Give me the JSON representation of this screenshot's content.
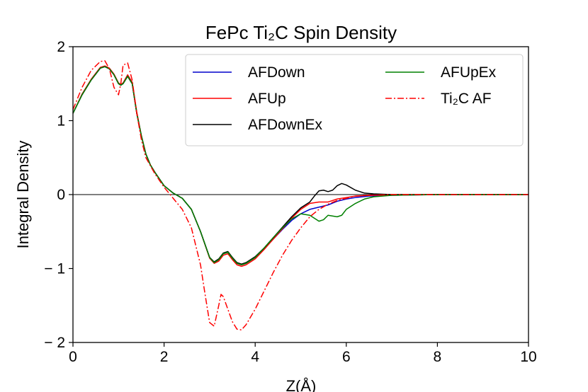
{
  "chart_data": {
    "type": "line",
    "title": "FePc Ti₂C Spin Density",
    "xlabel": "Z(Å)",
    "ylabel": "Integral Density",
    "xlim": [
      0,
      10
    ],
    "ylim": [
      -2,
      2
    ],
    "xticks": [
      "0",
      "2",
      "4",
      "6",
      "8",
      "10"
    ],
    "yticks": [
      "2",
      "1",
      "0",
      "− 1",
      "− 2"
    ],
    "ytick_values": [
      2,
      1,
      0,
      -1,
      -2
    ],
    "xtick_values": [
      0,
      2,
      4,
      6,
      8,
      10
    ],
    "zero_line": true,
    "legend_position": "top-right",
    "legend_columns": 2,
    "series": [
      {
        "name": "AFDown",
        "color": "#0000cc",
        "style": "solid",
        "x": [
          0,
          0.2,
          0.4,
          0.6,
          0.7,
          0.8,
          0.9,
          1.0,
          1.05,
          1.1,
          1.2,
          1.3,
          1.4,
          1.5,
          1.6,
          1.7,
          1.8,
          2.0,
          2.2,
          2.4,
          2.6,
          2.8,
          3.0,
          3.1,
          3.2,
          3.3,
          3.4,
          3.5,
          3.6,
          3.7,
          3.8,
          4.0,
          4.2,
          4.4,
          4.6,
          4.8,
          5.0,
          5.2,
          5.4,
          5.6,
          5.8,
          6.0,
          6.2,
          6.5,
          7.0,
          8.0,
          10.0
        ],
        "y": [
          1.1,
          1.35,
          1.55,
          1.71,
          1.73,
          1.7,
          1.62,
          1.5,
          1.48,
          1.5,
          1.6,
          1.5,
          1.1,
          0.8,
          0.55,
          0.4,
          0.3,
          0.12,
          0.02,
          -0.05,
          -0.2,
          -0.5,
          -0.85,
          -0.92,
          -0.88,
          -0.8,
          -0.78,
          -0.86,
          -0.93,
          -0.95,
          -0.93,
          -0.85,
          -0.73,
          -0.6,
          -0.47,
          -0.35,
          -0.26,
          -0.2,
          -0.17,
          -0.14,
          -0.09,
          -0.06,
          -0.04,
          -0.02,
          -0.01,
          0,
          0
        ]
      },
      {
        "name": "AFUp",
        "color": "#ff0000",
        "style": "solid",
        "x": [
          0,
          0.2,
          0.4,
          0.6,
          0.7,
          0.8,
          0.9,
          1.0,
          1.05,
          1.1,
          1.2,
          1.3,
          1.4,
          1.5,
          1.6,
          1.7,
          1.8,
          2.0,
          2.2,
          2.4,
          2.6,
          2.8,
          3.0,
          3.1,
          3.2,
          3.3,
          3.4,
          3.5,
          3.6,
          3.7,
          3.8,
          4.0,
          4.2,
          4.4,
          4.6,
          4.8,
          5.0,
          5.2,
          5.4,
          5.6,
          5.8,
          6.0,
          6.2,
          6.5,
          7.0,
          8.0,
          10.0
        ],
        "y": [
          1.1,
          1.36,
          1.56,
          1.72,
          1.74,
          1.71,
          1.63,
          1.51,
          1.49,
          1.51,
          1.62,
          1.52,
          1.12,
          0.8,
          0.55,
          0.4,
          0.3,
          0.12,
          0.02,
          -0.05,
          -0.2,
          -0.5,
          -0.86,
          -0.93,
          -0.9,
          -0.82,
          -0.8,
          -0.88,
          -0.95,
          -0.97,
          -0.95,
          -0.87,
          -0.74,
          -0.6,
          -0.46,
          -0.32,
          -0.2,
          -0.12,
          -0.1,
          -0.1,
          -0.06,
          -0.04,
          -0.02,
          -0.01,
          0,
          0,
          0
        ]
      },
      {
        "name": "AFDownEx",
        "color": "#000000",
        "style": "solid",
        "x": [
          0,
          0.2,
          0.4,
          0.6,
          0.7,
          0.8,
          0.9,
          1.0,
          1.05,
          1.1,
          1.2,
          1.3,
          1.4,
          1.5,
          1.6,
          1.7,
          1.8,
          2.0,
          2.2,
          2.4,
          2.6,
          2.8,
          3.0,
          3.1,
          3.2,
          3.3,
          3.4,
          3.5,
          3.6,
          3.7,
          3.8,
          4.0,
          4.2,
          4.4,
          4.6,
          4.8,
          5.0,
          5.2,
          5.3,
          5.4,
          5.5,
          5.6,
          5.7,
          5.8,
          5.9,
          6.0,
          6.2,
          6.4,
          6.6,
          7.0,
          8.0,
          10.0
        ],
        "y": [
          1.1,
          1.35,
          1.55,
          1.71,
          1.73,
          1.7,
          1.62,
          1.5,
          1.48,
          1.5,
          1.6,
          1.5,
          1.1,
          0.8,
          0.55,
          0.4,
          0.3,
          0.12,
          0.02,
          -0.05,
          -0.2,
          -0.5,
          -0.85,
          -0.91,
          -0.87,
          -0.79,
          -0.77,
          -0.85,
          -0.92,
          -0.94,
          -0.92,
          -0.84,
          -0.72,
          -0.58,
          -0.44,
          -0.3,
          -0.18,
          -0.1,
          -0.02,
          0.05,
          0.06,
          0.04,
          0.06,
          0.12,
          0.15,
          0.13,
          0.06,
          0.02,
          0.01,
          0,
          0,
          0
        ]
      },
      {
        "name": "AFUpEx",
        "color": "#008000",
        "style": "solid",
        "x": [
          0,
          0.2,
          0.4,
          0.6,
          0.7,
          0.8,
          0.9,
          1.0,
          1.05,
          1.1,
          1.2,
          1.3,
          1.4,
          1.5,
          1.6,
          1.7,
          1.8,
          2.0,
          2.2,
          2.4,
          2.6,
          2.8,
          3.0,
          3.1,
          3.2,
          3.3,
          3.4,
          3.5,
          3.6,
          3.7,
          3.8,
          4.0,
          4.2,
          4.4,
          4.6,
          4.8,
          5.0,
          5.2,
          5.4,
          5.5,
          5.6,
          5.8,
          5.9,
          6.0,
          6.2,
          6.4,
          6.6,
          7.0,
          8.0,
          10.0
        ],
        "y": [
          1.1,
          1.35,
          1.55,
          1.71,
          1.73,
          1.7,
          1.62,
          1.5,
          1.48,
          1.5,
          1.6,
          1.5,
          1.1,
          0.8,
          0.55,
          0.4,
          0.3,
          0.12,
          0.02,
          -0.05,
          -0.2,
          -0.5,
          -0.85,
          -0.92,
          -0.88,
          -0.8,
          -0.78,
          -0.86,
          -0.93,
          -0.95,
          -0.93,
          -0.85,
          -0.72,
          -0.58,
          -0.45,
          -0.33,
          -0.26,
          -0.28,
          -0.36,
          -0.34,
          -0.28,
          -0.3,
          -0.28,
          -0.2,
          -0.12,
          -0.06,
          -0.03,
          -0.01,
          0,
          0
        ]
      },
      {
        "name": "Ti₂C AF",
        "color": "#ff0000",
        "style": "dashdot",
        "x": [
          0,
          0.2,
          0.4,
          0.6,
          0.7,
          0.8,
          0.9,
          1.0,
          1.05,
          1.1,
          1.2,
          1.3,
          1.4,
          1.5,
          1.6,
          1.8,
          2.0,
          2.2,
          2.4,
          2.6,
          2.8,
          2.9,
          3.0,
          3.1,
          3.2,
          3.25,
          3.3,
          3.4,
          3.5,
          3.6,
          3.7,
          3.8,
          4.0,
          4.2,
          4.4,
          4.6,
          4.8,
          5.0,
          5.2,
          5.4,
          5.6,
          5.8,
          6.0,
          6.2,
          6.5,
          7.0,
          8.0,
          10.0
        ],
        "y": [
          1.15,
          1.45,
          1.68,
          1.8,
          1.81,
          1.7,
          1.45,
          1.35,
          1.5,
          1.75,
          1.78,
          1.55,
          1.1,
          0.75,
          0.5,
          0.28,
          0.1,
          -0.05,
          -0.2,
          -0.45,
          -0.95,
          -1.35,
          -1.73,
          -1.78,
          -1.5,
          -1.35,
          -1.38,
          -1.55,
          -1.72,
          -1.82,
          -1.83,
          -1.76,
          -1.55,
          -1.3,
          -1.05,
          -0.82,
          -0.62,
          -0.45,
          -0.3,
          -0.2,
          -0.13,
          -0.08,
          -0.05,
          -0.02,
          -0.01,
          0,
          0,
          0
        ]
      }
    ]
  }
}
